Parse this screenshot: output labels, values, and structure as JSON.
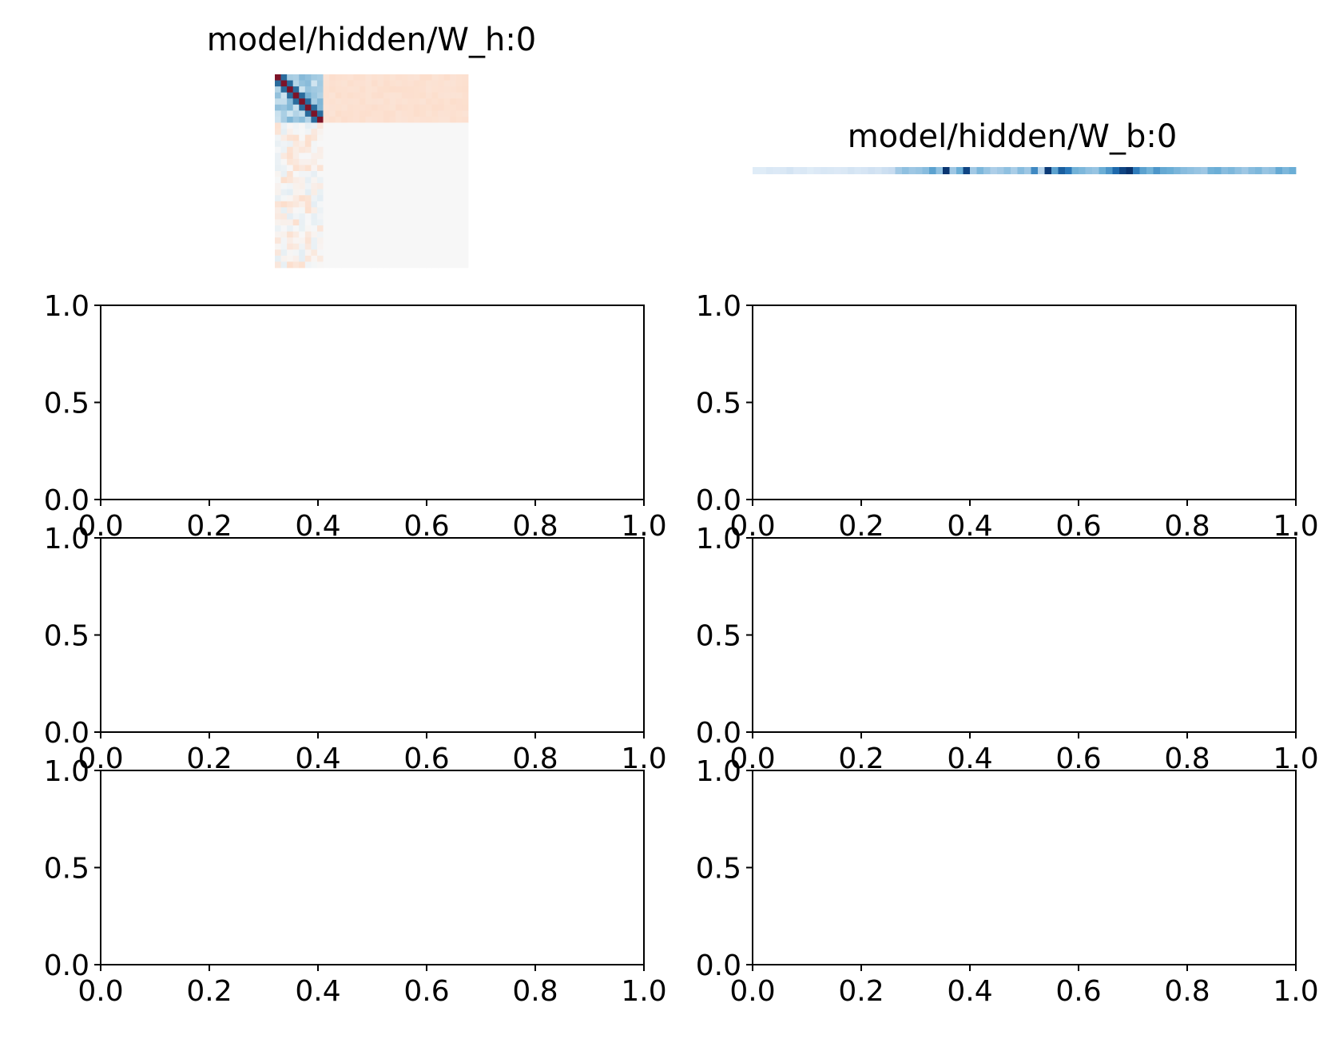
{
  "chart_data": [
    {
      "type": "heatmap",
      "title": "model/hidden/W_h:0",
      "colormap": "RdBu_r",
      "axes_visible": false,
      "grid": false,
      "rows": 32,
      "cols": 32,
      "blocks": [
        {
          "region": "top-left",
          "rows": [
            0,
            7
          ],
          "cols": [
            0,
            7
          ],
          "pattern": "diagonal structure with strong negative (red) main diagonal flanked by positive (blue) bands"
        },
        {
          "region": "top-right",
          "rows": [
            0,
            7
          ],
          "cols": [
            8,
            31
          ],
          "pattern": "uniform light red"
        },
        {
          "region": "bottom-left",
          "rows": [
            8,
            31
          ],
          "cols": [
            0,
            7
          ],
          "pattern": "light red and light blue noise"
        },
        {
          "region": "bottom-right",
          "rows": [
            8,
            31
          ],
          "cols": [
            8,
            31
          ],
          "pattern": "neutral (near zero)"
        }
      ]
    },
    {
      "type": "heatmap",
      "title": "model/hidden/W_b:0",
      "colormap": "Blues",
      "axes_visible": false,
      "grid": false,
      "rows": 1,
      "cols": 80,
      "values": [
        0.12,
        0.12,
        0.15,
        0.14,
        0.15,
        0.18,
        0.14,
        0.15,
        0.12,
        0.14,
        0.16,
        0.15,
        0.14,
        0.15,
        0.18,
        0.16,
        0.17,
        0.2,
        0.18,
        0.22,
        0.24,
        0.35,
        0.4,
        0.36,
        0.38,
        0.42,
        0.55,
        0.4,
        0.98,
        0.36,
        0.5,
        0.92,
        0.35,
        0.45,
        0.38,
        0.32,
        0.35,
        0.4,
        0.33,
        0.42,
        0.36,
        0.65,
        0.3,
        0.96,
        0.55,
        0.82,
        0.72,
        0.48,
        0.45,
        0.4,
        0.38,
        0.5,
        0.6,
        0.78,
        0.92,
        0.99,
        0.7,
        0.55,
        0.48,
        0.6,
        0.52,
        0.5,
        0.46,
        0.42,
        0.4,
        0.38,
        0.36,
        0.48,
        0.5,
        0.42,
        0.45,
        0.4,
        0.36,
        0.42,
        0.45,
        0.38,
        0.4,
        0.52,
        0.45,
        0.5
      ]
    },
    {
      "type": "line",
      "xlim": [
        0.0,
        1.0
      ],
      "ylim": [
        0.0,
        1.0
      ],
      "grid": false,
      "xticks": [
        "0.0",
        "0.2",
        "0.4",
        "0.6",
        "0.8",
        "1.0"
      ],
      "yticks": [
        "0.0",
        "0.5",
        "1.0"
      ]
    },
    {
      "type": "line",
      "xlim": [
        0.0,
        1.0
      ],
      "ylim": [
        0.0,
        1.0
      ],
      "grid": false,
      "xticks": [
        "0.0",
        "0.2",
        "0.4",
        "0.6",
        "0.8",
        "1.0"
      ],
      "yticks": [
        "0.0",
        "0.5",
        "1.0"
      ]
    },
    {
      "type": "line",
      "xlim": [
        0.0,
        1.0
      ],
      "ylim": [
        0.0,
        1.0
      ],
      "grid": false,
      "xticks": [
        "0.0",
        "0.2",
        "0.4",
        "0.6",
        "0.8",
        "1.0"
      ],
      "yticks": [
        "0.0",
        "0.5",
        "1.0"
      ]
    },
    {
      "type": "line",
      "xlim": [
        0.0,
        1.0
      ],
      "ylim": [
        0.0,
        1.0
      ],
      "grid": false,
      "xticks": [
        "0.0",
        "0.2",
        "0.4",
        "0.6",
        "0.8",
        "1.0"
      ],
      "yticks": [
        "0.0",
        "0.5",
        "1.0"
      ]
    },
    {
      "type": "line",
      "xlim": [
        0.0,
        1.0
      ],
      "ylim": [
        0.0,
        1.0
      ],
      "grid": false,
      "xticks": [
        "0.0",
        "0.2",
        "0.4",
        "0.6",
        "0.8",
        "1.0"
      ],
      "yticks": [
        "0.0",
        "0.5",
        "1.0"
      ]
    },
    {
      "type": "line",
      "xlim": [
        0.0,
        1.0
      ],
      "ylim": [
        0.0,
        1.0
      ],
      "grid": false,
      "xticks": [
        "0.0",
        "0.2",
        "0.4",
        "0.6",
        "0.8",
        "1.0"
      ],
      "yticks": [
        "0.0",
        "0.5",
        "1.0"
      ]
    }
  ]
}
